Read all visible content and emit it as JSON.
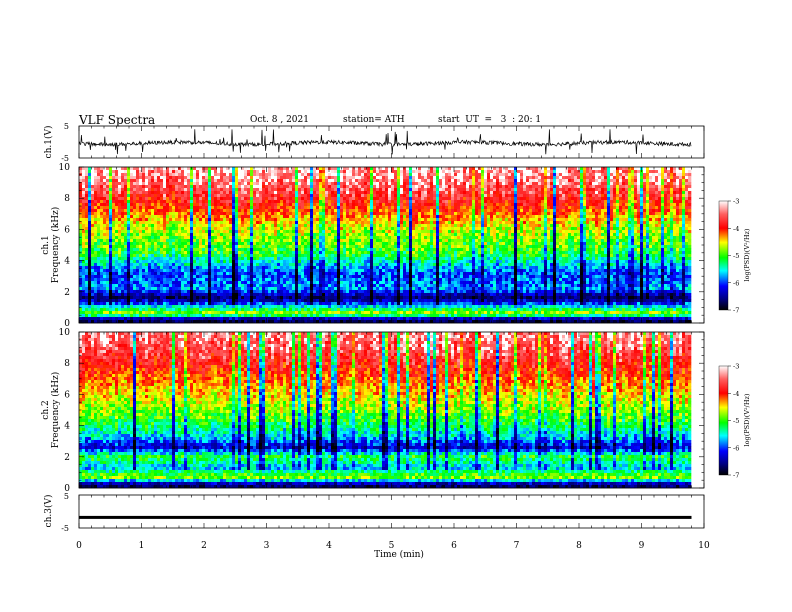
{
  "header": {
    "title": "VLF Spectra",
    "date": "Oct. 8 , 2021",
    "station": "station= ATH",
    "start": "start  UT  =   3  : 20: 1"
  },
  "chart_data": [
    {
      "type": "line",
      "panel": "ch1-waveform",
      "ylabel": "ch.1(V)",
      "yticks": [
        "5",
        "-5"
      ],
      "ylim": [
        -5,
        5
      ],
      "xlim": [
        0,
        10
      ],
      "series": [
        {
          "x_range": [
            0,
            9.8
          ],
          "baseline": -0.4,
          "noise_amplitude": 1.2,
          "spike_extent": [
            -4,
            4
          ],
          "color": "#000000"
        }
      ]
    },
    {
      "type": "heatmap",
      "panel": "ch1-spectrogram",
      "ylabel": "ch.1",
      "ylabel2": "Frequency  (kHz)",
      "yticks": [
        "0",
        "2",
        "4",
        "6",
        "8",
        "10"
      ],
      "ylim": [
        0,
        10
      ],
      "xlim": [
        0,
        10
      ],
      "data_x_range": [
        0,
        9.8
      ],
      "colorbar": {
        "label": "log(PSD)(V²/Hz)",
        "ticks": [
          "-3",
          "-4",
          "-5",
          "-6",
          "-7"
        ],
        "range": [
          -7,
          -3
        ]
      },
      "profile": [
        {
          "f": 0.2,
          "log_psd": -6.7
        },
        {
          "f": 0.6,
          "log_psd": -4.6
        },
        {
          "f": 1.0,
          "log_psd": -5.4
        },
        {
          "f": 1.6,
          "log_psd": -6.6
        },
        {
          "f": 2.2,
          "log_psd": -5.7
        },
        {
          "f": 3.2,
          "log_psd": -5.9
        },
        {
          "f": 4.5,
          "log_psd": -5.0
        },
        {
          "f": 6.0,
          "log_psd": -4.6
        },
        {
          "f": 7.5,
          "log_psd": -3.9
        },
        {
          "f": 9.0,
          "log_psd": -3.3
        },
        {
          "f": 10.0,
          "log_psd": -3.1
        }
      ]
    },
    {
      "type": "heatmap",
      "panel": "ch2-spectrogram",
      "ylabel": "ch.2",
      "ylabel2": "Frequency  (kHz)",
      "yticks": [
        "0",
        "2",
        "4",
        "6",
        "8",
        "10"
      ],
      "ylim": [
        0,
        10
      ],
      "xlim": [
        0,
        10
      ],
      "data_x_range": [
        0,
        9.8
      ],
      "colorbar": {
        "label": "log(PSD)(V²/Hz)",
        "ticks": [
          "-3",
          "-4",
          "-5",
          "-6",
          "-7"
        ],
        "range": [
          -7,
          -3
        ]
      },
      "profile": [
        {
          "f": 0.2,
          "log_psd": -6.6
        },
        {
          "f": 0.7,
          "log_psd": -4.7
        },
        {
          "f": 1.3,
          "log_psd": -5.6
        },
        {
          "f": 2.0,
          "log_psd": -5.0
        },
        {
          "f": 2.6,
          "log_psd": -6.2
        },
        {
          "f": 3.2,
          "log_psd": -5.6
        },
        {
          "f": 4.5,
          "log_psd": -4.9
        },
        {
          "f": 6.0,
          "log_psd": -4.4
        },
        {
          "f": 7.5,
          "log_psd": -3.9
        },
        {
          "f": 9.0,
          "log_psd": -3.4
        },
        {
          "f": 10.0,
          "log_psd": -3.2
        }
      ]
    },
    {
      "type": "line",
      "panel": "ch3-waveform",
      "ylabel": "ch.3(V)",
      "yticks": [
        "5",
        "-5"
      ],
      "ylim": [
        -5,
        5
      ],
      "xlim": [
        0,
        10
      ],
      "xlabel": "Time  (min)",
      "xticks": [
        "0",
        "1",
        "2",
        "3",
        "4",
        "5",
        "6",
        "7",
        "8",
        "9",
        "10"
      ],
      "series": [
        {
          "x_range": [
            0,
            9.8
          ],
          "level": -1.8,
          "color": "#000000"
        }
      ]
    }
  ]
}
